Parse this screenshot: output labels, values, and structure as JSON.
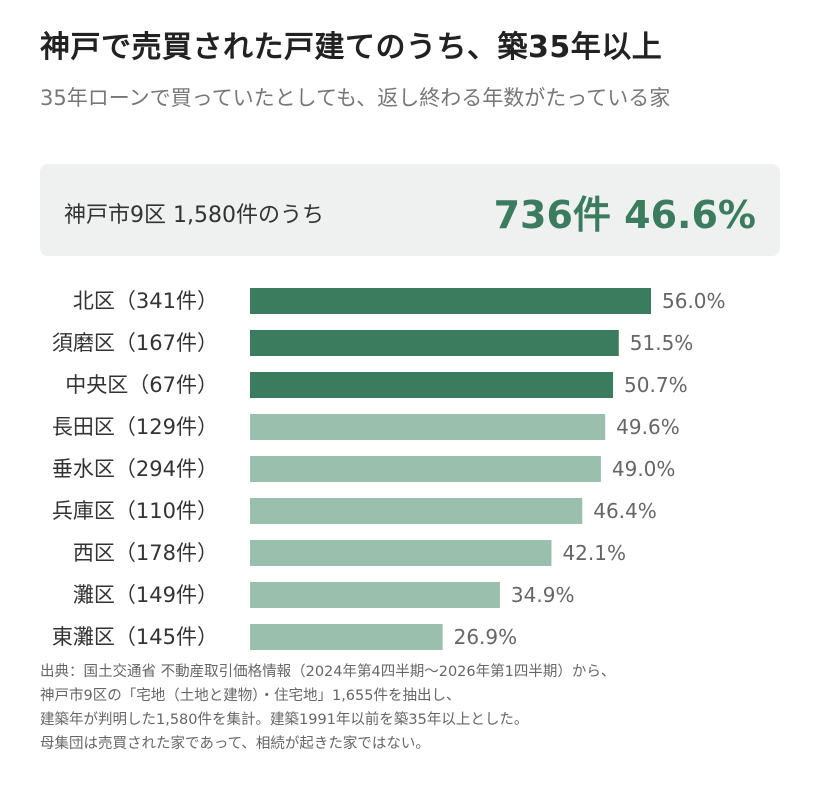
{
  "header": {
    "title": "神戸で売買された戸建てのうち、築35年以上",
    "subtitle": "35年ローンで買っていたとしても、返し終わる年数がたっている家"
  },
  "summary": {
    "label": "神戸市9区 1,580件のうち",
    "value": "736件 46.6%"
  },
  "colors": {
    "accent_text": "#3b7b5e",
    "bar_dark": "#3b7b5e",
    "bar_light": "#9bbfad",
    "box_bg": "#eef1ef"
  },
  "chart_data": {
    "type": "bar",
    "orientation": "horizontal",
    "categories": [
      "北区（341件）",
      "須磨区（167件）",
      "中央区（67件）",
      "長田区（129件）",
      "垂水区（294件）",
      "兵庫区（110件）",
      "西区（178件）",
      "灘区（149件）",
      "東灘区（145件）"
    ],
    "values": [
      56.0,
      51.5,
      50.7,
      49.6,
      49.0,
      46.4,
      42.1,
      34.9,
      26.9
    ],
    "value_labels": [
      "56.0%",
      "51.5%",
      "50.7%",
      "49.6%",
      "49.0%",
      "46.4%",
      "42.1%",
      "34.9%",
      "26.9%"
    ],
    "highlighted": [
      true,
      true,
      true,
      false,
      false,
      false,
      false,
      false,
      false
    ],
    "unit": "%",
    "xlim": [
      0,
      60
    ],
    "grid": false
  },
  "source": {
    "lines": [
      "出典：国土交通省 不動産取引価格情報（2024年第4四半期〜2026年第1四半期）から、",
      "神戸市9区の「宅地（土地と建物）・住宅地」1,655件を抽出し、",
      "建築年が判明した1,580件を集計。建築1991年以前を築35年以上とした。",
      "母集団は売買された家であって、相続が起きた家ではない。"
    ]
  }
}
